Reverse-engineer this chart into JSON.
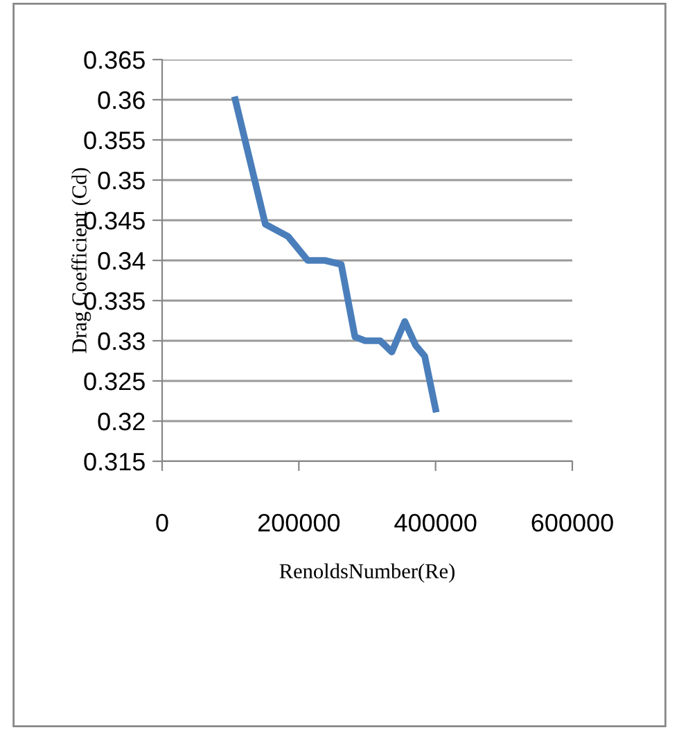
{
  "chart_data": {
    "type": "line",
    "xlabel": "RenoldsNumber(Re)",
    "ylabel": "Drag Coefficient (Cd)",
    "series": [
      {
        "color": "#4a7ebb",
        "x": [
          107000,
          151000,
          184000,
          213000,
          238000,
          262000,
          282000,
          297000,
          319000,
          336000,
          355000,
          371000,
          384000,
          400000
        ],
        "values": [
          0.36,
          0.3445,
          0.343,
          0.34,
          0.34,
          0.3395,
          0.3305,
          0.33,
          0.33,
          0.3286,
          0.3324,
          0.3294,
          0.3281,
          0.3215
        ]
      }
    ],
    "xlim": [
      0,
      600000
    ],
    "xticks": [
      0,
      200000,
      400000,
      600000
    ],
    "ylim": [
      0.315,
      0.365
    ],
    "yticks": [
      0.315,
      0.32,
      0.325,
      0.33,
      0.335,
      0.34,
      0.345,
      0.35,
      0.355,
      0.36,
      0.365
    ],
    "grid": "y",
    "legend": false,
    "marker": "none",
    "line_style": "solid"
  }
}
